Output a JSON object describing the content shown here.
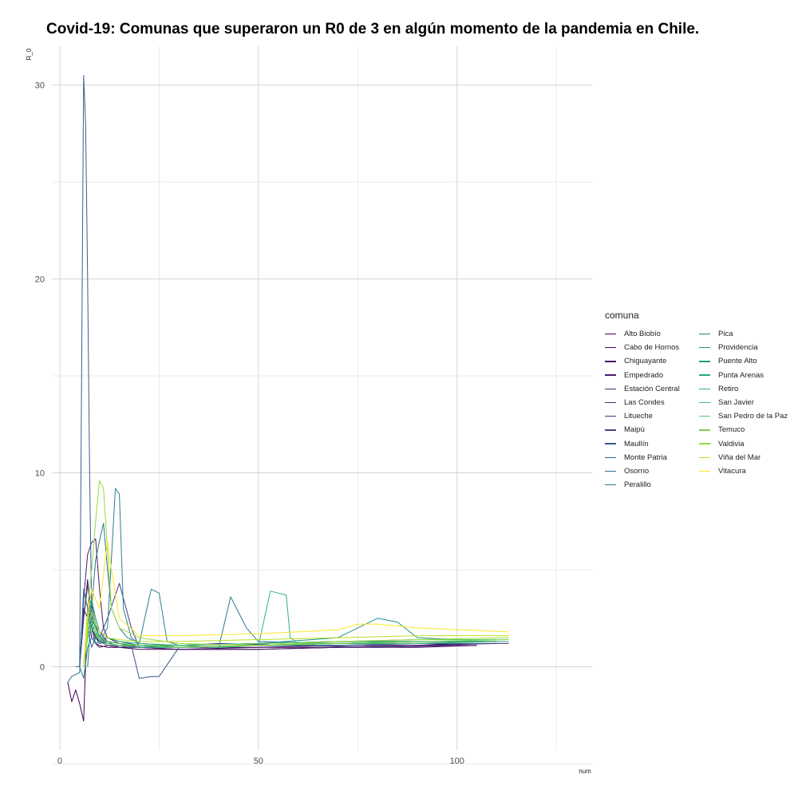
{
  "chart_data": {
    "type": "line",
    "title": "Covid-19: Comunas que superaron un R0 de 3 en algún momento de la pandemia en Chile.",
    "xlabel": "num",
    "ylabel": "R_0",
    "xlim": [
      -2,
      134
    ],
    "ylim": [
      -4.3,
      32
    ],
    "x_ticks": [
      0,
      50,
      100
    ],
    "y_ticks": [
      0,
      10,
      20,
      30
    ],
    "grid": true,
    "legend_title": "comuna",
    "legend_position": "right",
    "series": [
      {
        "name": "Alto Biobío",
        "color": "#440154",
        "x": [
          2,
          3,
          4,
          5,
          6,
          7,
          8,
          9,
          10,
          12,
          15,
          20,
          30,
          50,
          70,
          90,
          100
        ],
        "values": [
          -0.8,
          -1.8,
          -1.2,
          -1.9,
          -2.8,
          3.2,
          1.5,
          1.2,
          1.1,
          1.0,
          1.0,
          1.0,
          0.9,
          0.9,
          1.0,
          1.1,
          1.2
        ]
      },
      {
        "name": "Cabo de Hornos",
        "color": "#46085c",
        "x": [
          5,
          6,
          7,
          8,
          9,
          10,
          12,
          15,
          20,
          30,
          50,
          70,
          90,
          105
        ],
        "values": [
          0,
          2.5,
          4.5,
          2.0,
          1.2,
          1.0,
          1.1,
          1.0,
          0.9,
          0.9,
          1.0,
          1.0,
          1.0,
          1.1
        ]
      },
      {
        "name": "Chiguayante",
        "color": "#471063",
        "x": [
          5,
          6,
          7,
          8,
          9,
          10,
          12,
          15,
          20,
          30,
          50,
          70,
          90,
          110
        ],
        "values": [
          0,
          3.0,
          2.5,
          2.0,
          1.5,
          1.3,
          1.2,
          1.1,
          1.1,
          1.0,
          1.0,
          1.1,
          1.1,
          1.2
        ]
      },
      {
        "name": "Empedrado",
        "color": "#481b6d",
        "x": [
          5,
          6,
          7,
          8,
          9,
          10,
          11,
          12,
          15,
          20,
          30,
          50,
          70,
          90,
          105
        ],
        "values": [
          0,
          3.5,
          5.8,
          6.4,
          6.6,
          4.0,
          2.0,
          1.5,
          1.2,
          1.0,
          0.9,
          0.9,
          1.0,
          1.1,
          1.1
        ]
      },
      {
        "name": "Estación Central",
        "color": "#482475",
        "x": [
          6,
          7,
          8,
          9,
          10,
          12,
          15,
          20,
          30,
          50,
          70,
          90,
          110
        ],
        "values": [
          0,
          2.8,
          3.0,
          2.2,
          1.5,
          1.2,
          1.1,
          1.1,
          1.0,
          1.1,
          1.2,
          1.3,
          1.3
        ]
      },
      {
        "name": "Las Condes",
        "color": "#472e7c",
        "x": [
          6,
          7,
          8,
          9,
          10,
          12,
          15,
          20,
          30,
          50,
          70,
          90,
          113
        ],
        "values": [
          0,
          2.0,
          3.2,
          2.5,
          1.8,
          1.3,
          1.2,
          1.1,
          1.0,
          1.1,
          1.2,
          1.2,
          1.2
        ]
      },
      {
        "name": "Litueche",
        "color": "#453882",
        "x": [
          5,
          6,
          7,
          8,
          9,
          10,
          12,
          15,
          18,
          20,
          30,
          40,
          60,
          80,
          100
        ],
        "values": [
          0,
          2.5,
          4.2,
          3.0,
          2.0,
          1.5,
          2.5,
          4.3,
          2.0,
          1.0,
          1.1,
          1.2,
          1.1,
          1.0,
          1.1
        ]
      },
      {
        "name": "Maipú",
        "color": "#3f4788",
        "x": [
          6,
          7,
          8,
          9,
          10,
          12,
          15,
          20,
          30,
          50,
          70,
          90,
          110
        ],
        "values": [
          0,
          1.5,
          2.0,
          1.6,
          1.3,
          1.2,
          1.1,
          1.1,
          1.1,
          1.2,
          1.3,
          1.3,
          1.3
        ]
      },
      {
        "name": "Maullín",
        "color": "#3a548c",
        "x": [
          6,
          7,
          8,
          9,
          10,
          12,
          15,
          18,
          20,
          23,
          25,
          30,
          50,
          70,
          90,
          100
        ],
        "values": [
          0,
          2.0,
          1.0,
          1.5,
          1.2,
          1.3,
          1.0,
          1.1,
          -0.6,
          -0.5,
          -0.5,
          1.0,
          1.1,
          1.1,
          1.2,
          1.2
        ]
      },
      {
        "name": "Monte Patria",
        "color": "#34618d",
        "x": [
          4,
          5,
          6,
          6.5,
          7,
          7.5,
          8,
          8.5,
          9,
          10,
          12,
          15,
          20,
          30,
          50,
          70,
          90,
          110
        ],
        "values": [
          0,
          0,
          30.5,
          28.0,
          20.0,
          10.0,
          3.0,
          1.5,
          1.2,
          1.3,
          1.5,
          1.3,
          1.1,
          1.0,
          1.1,
          1.2,
          1.3,
          1.3
        ]
      },
      {
        "name": "Osorno",
        "color": "#2f6c8e",
        "x": [
          2,
          3,
          4,
          5,
          6,
          7,
          8,
          9,
          10,
          12,
          15,
          20,
          30,
          50,
          70,
          90,
          107
        ],
        "values": [
          -0.8,
          -0.5,
          -0.4,
          -0.3,
          4.0,
          3.0,
          2.0,
          1.6,
          1.3,
          1.1,
          1.1,
          1.0,
          1.0,
          1.1,
          1.1,
          1.2,
          1.2
        ]
      },
      {
        "name": "Peralillo",
        "color": "#2a788e",
        "x": [
          7,
          8,
          9,
          10,
          11,
          12,
          13,
          15,
          17,
          20,
          30,
          40,
          43,
          45,
          47,
          50,
          70,
          90,
          105
        ],
        "values": [
          0,
          3.0,
          5.5,
          6.5,
          7.4,
          5.0,
          3.0,
          2.0,
          1.5,
          1.2,
          1.1,
          1.0,
          3.6,
          2.8,
          2.0,
          1.3,
          1.2,
          1.2,
          1.3
        ]
      },
      {
        "name": "Pica",
        "color": "#25838e",
        "x": [
          5,
          6,
          7,
          8,
          9,
          10,
          12,
          14,
          15,
          16,
          18,
          20,
          23,
          25,
          27,
          30,
          50,
          70,
          90,
          110
        ],
        "values": [
          0,
          -0.6,
          1.0,
          1.5,
          1.2,
          1.3,
          2.0,
          9.2,
          8.9,
          3.0,
          1.5,
          1.2,
          4.0,
          3.8,
          1.3,
          1.1,
          1.2,
          1.3,
          1.3,
          1.3
        ]
      },
      {
        "name": "Providencia",
        "color": "#208f8c",
        "x": [
          6,
          7,
          8,
          9,
          10,
          12,
          15,
          20,
          30,
          50,
          70,
          80,
          85,
          90,
          100
        ],
        "values": [
          0,
          2.2,
          2.8,
          2.0,
          1.5,
          1.3,
          1.2,
          1.1,
          1.1,
          1.2,
          1.5,
          2.5,
          2.3,
          1.5,
          1.4
        ]
      },
      {
        "name": "Puente Alto",
        "color": "#1e9b89",
        "x": [
          6,
          7,
          8,
          9,
          10,
          12,
          15,
          20,
          30,
          50,
          70,
          90,
          110
        ],
        "values": [
          0,
          1.8,
          2.5,
          2.0,
          1.6,
          1.3,
          1.2,
          1.1,
          1.1,
          1.2,
          1.3,
          1.3,
          1.3
        ]
      },
      {
        "name": "Punta Arenas",
        "color": "#23a883",
        "x": [
          6,
          7,
          8,
          9,
          10,
          12,
          15,
          20,
          30,
          50,
          70,
          90,
          113
        ],
        "values": [
          0,
          1.5,
          2.2,
          1.8,
          1.4,
          1.2,
          1.1,
          1.0,
          1.0,
          1.1,
          1.2,
          1.3,
          1.3
        ]
      },
      {
        "name": "Retiro",
        "color": "#2eb37c",
        "x": [
          6,
          7,
          8,
          9,
          10,
          12,
          15,
          20,
          30,
          40,
          50,
          53,
          55,
          57,
          58,
          60,
          70,
          90,
          105
        ],
        "values": [
          0,
          2.0,
          3.5,
          2.5,
          1.8,
          1.5,
          1.3,
          1.2,
          1.1,
          1.0,
          1.1,
          3.9,
          3.8,
          3.7,
          1.5,
          1.2,
          1.2,
          1.3,
          1.3
        ]
      },
      {
        "name": "San Javier",
        "color": "#42be71",
        "x": [
          6,
          7,
          8,
          9,
          10,
          12,
          15,
          20,
          30,
          50,
          70,
          90,
          110
        ],
        "values": [
          0,
          2.5,
          3.0,
          2.0,
          1.5,
          1.3,
          1.2,
          1.1,
          1.0,
          1.1,
          1.2,
          1.2,
          1.3
        ]
      },
      {
        "name": "San Pedro de la Paz",
        "color": "#5bc863",
        "x": [
          6,
          7,
          8,
          9,
          10,
          12,
          15,
          20,
          30,
          50,
          70,
          90,
          110
        ],
        "values": [
          0,
          1.8,
          2.3,
          1.8,
          1.5,
          1.3,
          1.2,
          1.1,
          1.1,
          1.2,
          1.3,
          1.4,
          1.4
        ]
      },
      {
        "name": "Temuco",
        "color": "#79d151",
        "x": [
          6,
          7,
          8,
          9,
          10,
          12,
          15,
          20,
          30,
          50,
          70,
          90,
          113
        ],
        "values": [
          0,
          1.5,
          2.0,
          1.7,
          1.4,
          1.2,
          1.1,
          1.1,
          1.0,
          1.1,
          1.2,
          1.3,
          1.4
        ]
      },
      {
        "name": "Valdivia",
        "color": "#9bd93c",
        "x": [
          6,
          7,
          8,
          9,
          10,
          11,
          12,
          13,
          15,
          20,
          30,
          50,
          70,
          90,
          113
        ],
        "values": [
          0,
          3.0,
          5.0,
          7.5,
          9.6,
          9.2,
          6.0,
          3.0,
          2.0,
          1.5,
          1.2,
          1.1,
          1.3,
          1.4,
          1.5
        ]
      },
      {
        "name": "Viña del Mar",
        "color": "#bddf26",
        "x": [
          6,
          7,
          8,
          9,
          10,
          12,
          15,
          20,
          30,
          50,
          70,
          90,
          113
        ],
        "values": [
          0,
          2.0,
          2.8,
          2.2,
          1.8,
          1.5,
          1.4,
          1.3,
          1.3,
          1.4,
          1.5,
          1.6,
          1.6
        ]
      },
      {
        "name": "Vitacura",
        "color": "#fde725",
        "x": [
          6,
          7,
          8,
          9,
          10,
          12,
          13,
          15,
          20,
          30,
          50,
          70,
          75,
          80,
          90,
          113
        ],
        "values": [
          0,
          2.5,
          4.0,
          3.5,
          3.0,
          6.5,
          5.0,
          2.5,
          1.6,
          1.6,
          1.7,
          1.9,
          2.2,
          2.2,
          2.0,
          1.8
        ]
      }
    ]
  }
}
